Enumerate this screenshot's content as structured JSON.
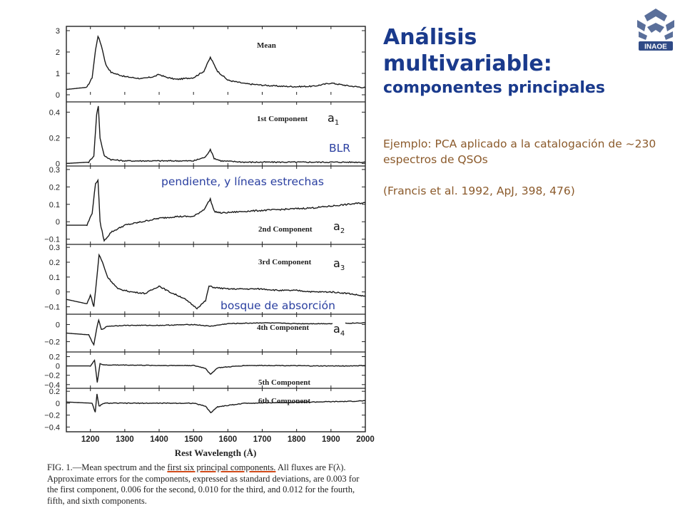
{
  "slide": {
    "title_line1": "Análisis",
    "title_line2": "multivariable:",
    "subtitle": "componentes principales",
    "example_text": "Ejemplo: PCA aplicado a la catalogación de ~230 espectros de QSOs",
    "reference": "(Francis et al. 1992, ApJ, 398, 476)",
    "logo_text": "INAOE",
    "colors": {
      "title": "#1a3a8c",
      "body_text": "#8b5a2b",
      "annotation": "#2a3fa0",
      "underline": "#d04a1a"
    }
  },
  "annotations": {
    "blr": "BLR",
    "slope": "pendiente, y líneas estrechas",
    "forest": "bosque de absorción",
    "a_letter": "a",
    "a1_sub": "1",
    "a2_sub": "2",
    "a3_sub": "3",
    "a4_sub": "4"
  },
  "caption": {
    "prefix": "FIG. 1.—Mean spectrum and the ",
    "underlined": "first six principal components.",
    "rest": " All fluxes are F(λ). Approximate errors for the components, expressed as standard deviations, are 0.003 for the first component, 0.006 for the second, 0.010 for the third, and 0.012 for the fourth, fifth, and sixth components."
  },
  "chart_data": {
    "type": "line",
    "xlabel": "Rest Wavelength (Å)",
    "xlim": [
      1130,
      2000
    ],
    "x_ticks": [
      1200,
      1300,
      1400,
      1500,
      1600,
      1700,
      1800,
      1900,
      2000
    ],
    "panels": [
      {
        "name": "Mean",
        "y_ticks": [
          0,
          1,
          2,
          3
        ],
        "ylim": [
          0,
          3.2
        ],
        "x": [
          1130,
          1190,
          1205,
          1215,
          1222,
          1232,
          1245,
          1260,
          1300,
          1350,
          1385,
          1400,
          1420,
          1450,
          1500,
          1530,
          1549,
          1570,
          1600,
          1650,
          1700,
          1750,
          1800,
          1850,
          1900,
          1950,
          2000
        ],
        "y": [
          0.25,
          0.35,
          0.8,
          2.1,
          2.75,
          2.3,
          1.4,
          1.05,
          0.85,
          0.75,
          0.85,
          0.95,
          0.82,
          0.72,
          0.8,
          1.1,
          1.75,
          1.1,
          0.68,
          0.52,
          0.45,
          0.4,
          0.38,
          0.4,
          0.55,
          0.42,
          0.33
        ]
      },
      {
        "name": "1st Component",
        "y_ticks": [
          0,
          0.2,
          0.4
        ],
        "ylim": [
          -0.02,
          0.48
        ],
        "x": [
          1130,
          1195,
          1210,
          1218,
          1223,
          1228,
          1240,
          1260,
          1300,
          1400,
          1500,
          1535,
          1549,
          1560,
          1580,
          1650,
          1750,
          1850,
          1900,
          2000
        ],
        "y": [
          0.0,
          0.01,
          0.06,
          0.38,
          0.45,
          0.2,
          0.06,
          0.03,
          0.02,
          0.02,
          0.02,
          0.05,
          0.11,
          0.04,
          0.02,
          0.01,
          0.01,
          0.01,
          0.01,
          0.01
        ]
      },
      {
        "name": "2nd Component",
        "y_ticks": [
          -0.1,
          0,
          0.1,
          0.2,
          0.3
        ],
        "ylim": [
          -0.13,
          0.32
        ],
        "x": [
          1130,
          1190,
          1205,
          1215,
          1222,
          1228,
          1240,
          1260,
          1300,
          1350,
          1400,
          1450,
          1500,
          1530,
          1549,
          1560,
          1580,
          1650,
          1750,
          1850,
          1900,
          1950,
          2000
        ],
        "y": [
          -0.02,
          -0.02,
          0.05,
          0.22,
          0.24,
          0.0,
          -0.11,
          -0.06,
          -0.02,
          0.0,
          0.02,
          0.03,
          0.03,
          0.07,
          0.13,
          0.06,
          0.05,
          0.06,
          0.07,
          0.08,
          0.09,
          0.1,
          0.11
        ]
      },
      {
        "name": "3rd Component",
        "y_ticks": [
          -0.1,
          0,
          0.1,
          0.2,
          0.3
        ],
        "ylim": [
          -0.15,
          0.32
        ],
        "x": [
          1130,
          1190,
          1200,
          1210,
          1218,
          1225,
          1235,
          1250,
          1280,
          1320,
          1360,
          1400,
          1430,
          1470,
          1510,
          1535,
          1545,
          1560,
          1600,
          1650,
          1700,
          1750,
          1800,
          1850,
          1900,
          1950,
          2000
        ],
        "y": [
          -0.05,
          -0.08,
          -0.02,
          -0.1,
          0.08,
          0.25,
          0.2,
          0.1,
          0.02,
          0.0,
          -0.01,
          0.04,
          0.0,
          -0.04,
          -0.11,
          -0.06,
          0.04,
          0.03,
          0.02,
          0.02,
          0.02,
          0.01,
          0.01,
          0.0,
          0.0,
          -0.01,
          -0.03
        ]
      },
      {
        "name": "4th Component",
        "y_ticks": [
          -0.2,
          0
        ],
        "ylim": [
          -0.32,
          0.12
        ],
        "x": [
          1130,
          1195,
          1210,
          1218,
          1224,
          1232,
          1250,
          1300,
          1400,
          1500,
          1549,
          1600,
          1700,
          1800,
          1900,
          2000
        ],
        "y": [
          -0.1,
          -0.12,
          -0.24,
          -0.05,
          0.05,
          -0.06,
          -0.02,
          -0.01,
          -0.01,
          0.0,
          -0.02,
          0.01,
          0.02,
          0.01,
          0.01,
          0.02
        ]
      },
      {
        "name": "5th Component",
        "y_ticks": [
          -0.4,
          -0.2,
          0,
          0.2
        ],
        "ylim": [
          -0.48,
          0.3
        ],
        "x": [
          1130,
          1200,
          1212,
          1220,
          1228,
          1240,
          1300,
          1400,
          1500,
          1535,
          1549,
          1570,
          1650,
          1750,
          1850,
          1950,
          2000
        ],
        "y": [
          0.0,
          0.0,
          0.12,
          -0.35,
          0.05,
          0.02,
          0.02,
          0.01,
          0.01,
          -0.05,
          -0.18,
          -0.04,
          0.01,
          0.01,
          0.0,
          0.0,
          0.01
        ]
      },
      {
        "name": "6th Component",
        "y_ticks": [
          -0.4,
          -0.2,
          0,
          0.2
        ],
        "ylim": [
          -0.48,
          0.25
        ],
        "x": [
          1130,
          1205,
          1214,
          1219,
          1225,
          1240,
          1300,
          1400,
          1500,
          1535,
          1550,
          1570,
          1650,
          1750,
          1850,
          1950,
          2000
        ],
        "y": [
          0.02,
          0.0,
          -0.15,
          0.15,
          -0.05,
          0.0,
          0.0,
          0.0,
          0.0,
          -0.05,
          -0.16,
          -0.06,
          0.0,
          0.01,
          0.02,
          0.03,
          0.04
        ]
      }
    ],
    "y_tick_labels": {
      "p0": [
        "0",
        "1",
        "2",
        "3"
      ],
      "p1": [
        "0",
        "0.2",
        "0.4"
      ],
      "p2": [
        "−0.1",
        "0",
        "0.1",
        "0.2",
        "0.3"
      ],
      "p3": [
        "−0.1",
        "0",
        "0.1",
        "0.2",
        "0.3"
      ],
      "p4": [
        "−0.2",
        "0"
      ],
      "p5": [
        "−0.4",
        "−0.2",
        "0",
        "0.2"
      ],
      "p6": [
        "−0.4",
        "−0.2",
        "0",
        "0.2"
      ]
    }
  }
}
